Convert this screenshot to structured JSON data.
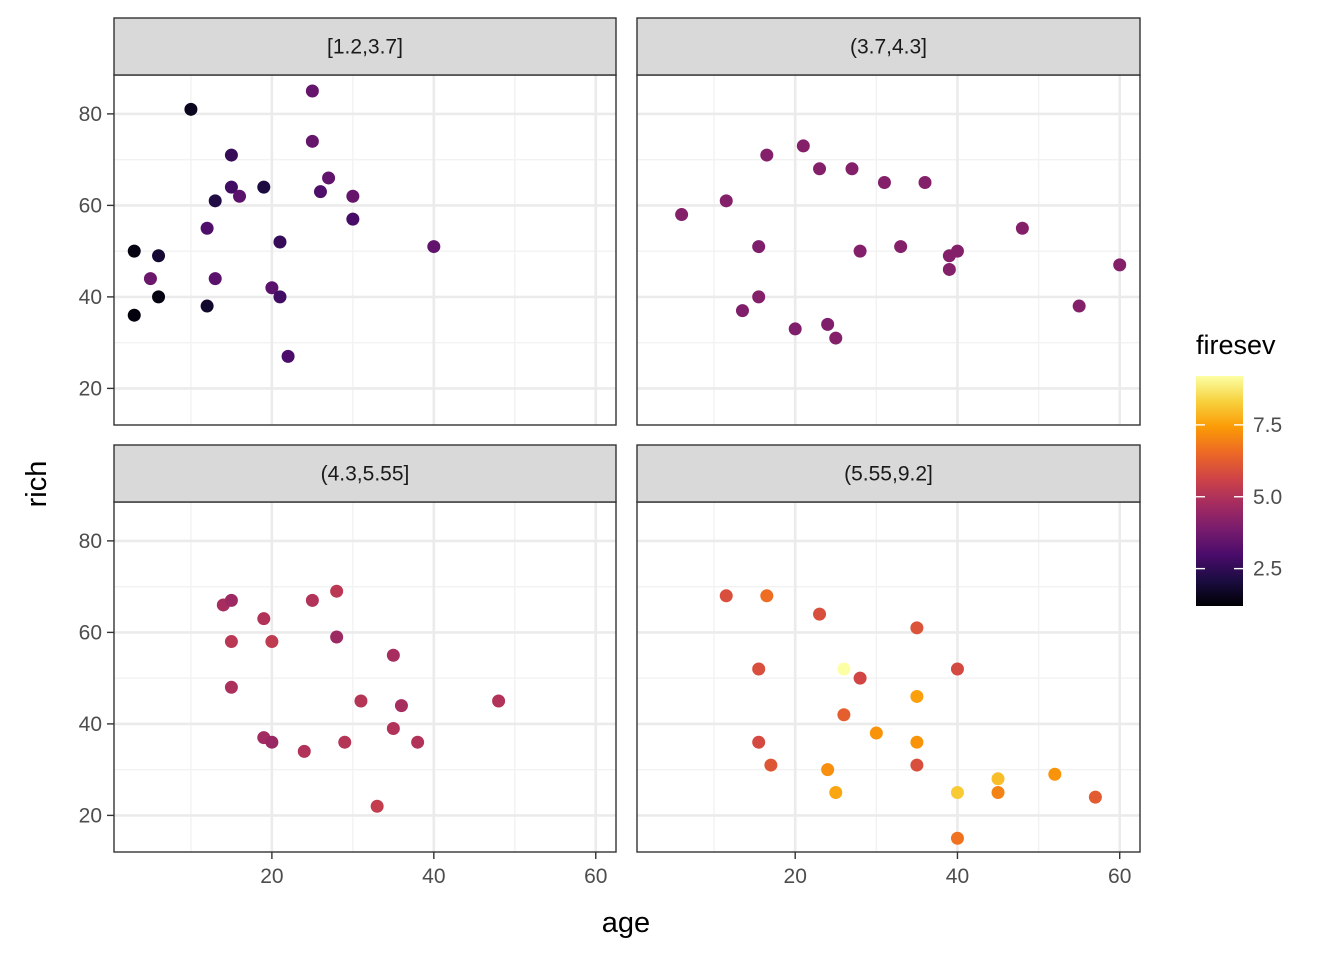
{
  "chart_data": {
    "type": "scatter",
    "xlabel": "age",
    "ylabel": "rich",
    "xlim": [
      0.5,
      62.5
    ],
    "ylim": [
      12,
      88.5
    ],
    "x_ticks": [
      20,
      40,
      60
    ],
    "y_ticks": [
      20,
      40,
      60,
      80
    ],
    "grid": true,
    "legend": {
      "title": "firesev",
      "placement": "right",
      "type": "colorbar",
      "range": [
        1.2,
        9.2
      ],
      "ticks": [
        2.5,
        5.0,
        7.5
      ],
      "tick_labels": [
        "2.5",
        "5.0",
        "7.5"
      ],
      "palette": [
        "#000004",
        "#1b0c41",
        "#4a0c6b",
        "#781c6d",
        "#a52c60",
        "#cf4446",
        "#ed6925",
        "#fb9b06",
        "#f7d13d",
        "#fcffa4"
      ]
    },
    "panels": [
      {
        "label": "[1.2,3.7]",
        "points": [
          {
            "x": 3,
            "y": 50,
            "c": 1.4
          },
          {
            "x": 3,
            "y": 36,
            "c": 1.3
          },
          {
            "x": 5,
            "y": 44,
            "c": 3.6
          },
          {
            "x": 6,
            "y": 49,
            "c": 1.9
          },
          {
            "x": 6,
            "y": 40,
            "c": 1.4
          },
          {
            "x": 10,
            "y": 81,
            "c": 1.6
          },
          {
            "x": 12,
            "y": 55,
            "c": 3.1
          },
          {
            "x": 12,
            "y": 38,
            "c": 1.8
          },
          {
            "x": 13,
            "y": 61,
            "c": 2.2
          },
          {
            "x": 13,
            "y": 44,
            "c": 3.3
          },
          {
            "x": 15,
            "y": 71,
            "c": 2.6
          },
          {
            "x": 15,
            "y": 64,
            "c": 2.8
          },
          {
            "x": 16,
            "y": 62,
            "c": 3.3
          },
          {
            "x": 19,
            "y": 64,
            "c": 2.1
          },
          {
            "x": 20,
            "y": 42,
            "c": 3.3
          },
          {
            "x": 21,
            "y": 52,
            "c": 2.6
          },
          {
            "x": 21,
            "y": 40,
            "c": 2.8
          },
          {
            "x": 22,
            "y": 27,
            "c": 3.0
          },
          {
            "x": 25,
            "y": 85,
            "c": 3.5
          },
          {
            "x": 25,
            "y": 74,
            "c": 3.5
          },
          {
            "x": 26,
            "y": 63,
            "c": 3.1
          },
          {
            "x": 27,
            "y": 66,
            "c": 3.4
          },
          {
            "x": 30,
            "y": 62,
            "c": 3.5
          },
          {
            "x": 30,
            "y": 57,
            "c": 2.9
          },
          {
            "x": 40,
            "y": 51,
            "c": 3.4
          }
        ]
      },
      {
        "label": "(3.7,4.3]",
        "points": [
          {
            "x": 6,
            "y": 58,
            "c": 4.1
          },
          {
            "x": 11.5,
            "y": 61,
            "c": 4.1
          },
          {
            "x": 13.5,
            "y": 37,
            "c": 4.0
          },
          {
            "x": 15.5,
            "y": 51,
            "c": 4.0
          },
          {
            "x": 15.5,
            "y": 40,
            "c": 4.1
          },
          {
            "x": 16.5,
            "y": 71,
            "c": 4.1
          },
          {
            "x": 20,
            "y": 33,
            "c": 4.0
          },
          {
            "x": 21,
            "y": 73,
            "c": 4.1
          },
          {
            "x": 23,
            "y": 68,
            "c": 4.1
          },
          {
            "x": 24,
            "y": 34,
            "c": 4.0
          },
          {
            "x": 25,
            "y": 31,
            "c": 4.1
          },
          {
            "x": 27,
            "y": 68,
            "c": 4.1
          },
          {
            "x": 28,
            "y": 50,
            "c": 4.1
          },
          {
            "x": 31,
            "y": 65,
            "c": 4.1
          },
          {
            "x": 33,
            "y": 51,
            "c": 4.1
          },
          {
            "x": 36,
            "y": 65,
            "c": 4.1
          },
          {
            "x": 39,
            "y": 49,
            "c": 4.1
          },
          {
            "x": 39,
            "y": 46,
            "c": 4.1
          },
          {
            "x": 40,
            "y": 50,
            "c": 4.1
          },
          {
            "x": 48,
            "y": 55,
            "c": 4.1
          },
          {
            "x": 55,
            "y": 38,
            "c": 4.1
          },
          {
            "x": 60,
            "y": 47,
            "c": 4.1
          }
        ]
      },
      {
        "label": "(4.3,5.55]",
        "points": [
          {
            "x": 14,
            "y": 66,
            "c": 4.8
          },
          {
            "x": 15,
            "y": 67,
            "c": 4.6
          },
          {
            "x": 15,
            "y": 58,
            "c": 5.2
          },
          {
            "x": 15,
            "y": 48,
            "c": 4.9
          },
          {
            "x": 19,
            "y": 63,
            "c": 5.0
          },
          {
            "x": 19,
            "y": 37,
            "c": 4.7
          },
          {
            "x": 20,
            "y": 58,
            "c": 5.3
          },
          {
            "x": 20,
            "y": 36,
            "c": 4.5
          },
          {
            "x": 24,
            "y": 34,
            "c": 5.0
          },
          {
            "x": 25,
            "y": 67,
            "c": 5.0
          },
          {
            "x": 28,
            "y": 69,
            "c": 5.2
          },
          {
            "x": 28,
            "y": 59,
            "c": 4.6
          },
          {
            "x": 29,
            "y": 36,
            "c": 5.1
          },
          {
            "x": 31,
            "y": 45,
            "c": 5.1
          },
          {
            "x": 33,
            "y": 22,
            "c": 5.4
          },
          {
            "x": 35,
            "y": 55,
            "c": 4.8
          },
          {
            "x": 35,
            "y": 39,
            "c": 5.0
          },
          {
            "x": 36,
            "y": 44,
            "c": 4.8
          },
          {
            "x": 38,
            "y": 36,
            "c": 5.0
          },
          {
            "x": 48,
            "y": 45,
            "c": 5.0
          }
        ]
      },
      {
        "label": "(5.55,9.2]",
        "points": [
          {
            "x": 11.5,
            "y": 68,
            "c": 5.9
          },
          {
            "x": 15.5,
            "y": 52,
            "c": 5.9
          },
          {
            "x": 15.5,
            "y": 36,
            "c": 5.8
          },
          {
            "x": 16.5,
            "y": 68,
            "c": 6.6
          },
          {
            "x": 17,
            "y": 31,
            "c": 6.1
          },
          {
            "x": 23,
            "y": 64,
            "c": 5.9
          },
          {
            "x": 24,
            "y": 30,
            "c": 7.2
          },
          {
            "x": 25,
            "y": 25,
            "c": 7.6
          },
          {
            "x": 26,
            "y": 52,
            "c": 9.2
          },
          {
            "x": 26,
            "y": 42,
            "c": 6.3
          },
          {
            "x": 28,
            "y": 50,
            "c": 5.7
          },
          {
            "x": 30,
            "y": 38,
            "c": 7.3
          },
          {
            "x": 35,
            "y": 61,
            "c": 6.0
          },
          {
            "x": 35,
            "y": 46,
            "c": 7.5
          },
          {
            "x": 35,
            "y": 36,
            "c": 7.3
          },
          {
            "x": 35,
            "y": 31,
            "c": 5.9
          },
          {
            "x": 40,
            "y": 52,
            "c": 5.8
          },
          {
            "x": 40,
            "y": 25,
            "c": 8.2
          },
          {
            "x": 40,
            "y": 15,
            "c": 6.7
          },
          {
            "x": 45,
            "y": 28,
            "c": 8.0
          },
          {
            "x": 45,
            "y": 25,
            "c": 7.0
          },
          {
            "x": 52,
            "y": 29,
            "c": 7.3
          },
          {
            "x": 57,
            "y": 24,
            "c": 6.2
          }
        ]
      }
    ]
  }
}
